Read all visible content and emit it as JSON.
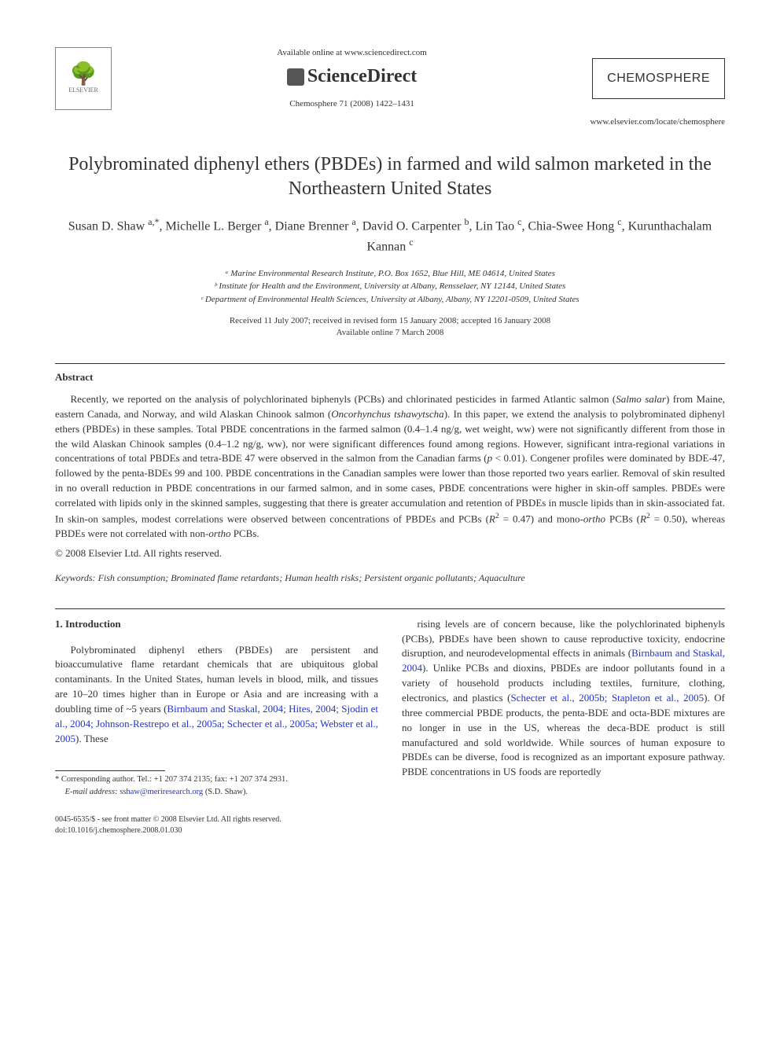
{
  "header": {
    "elsevier_label": "ELSEVIER",
    "available_online": "Available online at www.sciencedirect.com",
    "sciencedirect": "ScienceDirect",
    "citation": "Chemosphere 71 (2008) 1422–1431",
    "journal_name": "CHEMOSPHERE",
    "journal_url": "www.elsevier.com/locate/chemosphere"
  },
  "title": "Polybrominated diphenyl ethers (PBDEs) in farmed and wild salmon marketed in the Northeastern United States",
  "authors_html": "Susan D. Shaw <sup>a,*</sup>, Michelle L. Berger <sup>a</sup>, Diane Brenner <sup>a</sup>, David O. Carpenter <sup>b</sup>, Lin Tao <sup>c</sup>, Chia-Swee Hong <sup>c</sup>, Kurunthachalam Kannan <sup>c</sup>",
  "affiliations": [
    "ᵃ Marine Environmental Research Institute, P.O. Box 1652, Blue Hill, ME 04614, United States",
    "ᵇ Institute for Health and the Environment, University at Albany, Rensselaer, NY 12144, United States",
    "ᶜ Department of Environmental Health Sciences, University at Albany, Albany, NY 12201-0509, United States"
  ],
  "dates": {
    "received": "Received 11 July 2007; received in revised form 15 January 2008; accepted 16 January 2008",
    "available": "Available online 7 March 2008"
  },
  "abstract": {
    "heading": "Abstract",
    "body_html": "Recently, we reported on the analysis of polychlorinated biphenyls (PCBs) and chlorinated pesticides in farmed Atlantic salmon (<span class='ital'>Salmo salar</span>) from Maine, eastern Canada, and Norway, and wild Alaskan Chinook salmon (<span class='ital'>Oncorhynchus tshawytscha</span>). In this paper, we extend the analysis to polybrominated diphenyl ethers (PBDEs) in these samples. Total PBDE concentrations in the farmed salmon (0.4–1.4 ng/g, wet weight, ww) were not significantly different from those in the wild Alaskan Chinook samples (0.4–1.2 ng/g, ww), nor were significant differences found among regions. However, significant intra-regional variations in concentrations of total PBDEs and tetra-BDE 47 were observed in the salmon from the Canadian farms (<span class='ital'>p</span> &lt; 0.01). Congener profiles were dominated by BDE-47, followed by the penta-BDEs 99 and 100. PBDE concentrations in the Canadian samples were lower than those reported two years earlier. Removal of skin resulted in no overall reduction in PBDE concentrations in our farmed salmon, and in some cases, PBDE concentrations were higher in skin-off samples. PBDEs were correlated with lipids only in the skinned samples, suggesting that there is greater accumulation and retention of PBDEs in muscle lipids than in skin-associated fat. In skin-on samples, modest correlations were observed between concentrations of PBDEs and PCBs (<span class='ital'>R</span><sup>2</sup> = 0.47) and mono-<span class='ital'>ortho</span> PCBs (<span class='ital'>R</span><sup>2</sup> = 0.50), whereas PBDEs were not correlated with non-<span class='ital'>ortho</span> PCBs.",
    "copyright": "© 2008 Elsevier Ltd. All rights reserved."
  },
  "keywords": {
    "label": "Keywords:",
    "list": "Fish consumption; Brominated flame retardants; Human health risks; Persistent organic pollutants; Aquaculture"
  },
  "intro": {
    "heading": "1. Introduction",
    "col1_html": "Polybrominated diphenyl ethers (PBDEs) are persistent and bioaccumulative flame retardant chemicals that are ubiquitous global contaminants. In the United States, human levels in blood, milk, and tissues are 10–20 times higher than in Europe or Asia and are increasing with a doubling time of ~5 years (<span class='blue-link'>Birnbaum and Staskal, 2004; Hites, 2004; Sjodin et al., 2004; Johnson-Restrepo et al., 2005a; Schecter et al., 2005a; Webster et al., 2005</span>). These",
    "col2_html": "rising levels are of concern because, like the polychlorinated biphenyls (PCBs), PBDEs have been shown to cause reproductive toxicity, endocrine disruption, and neurodevelopmental effects in animals (<span class='blue-link'>Birnbaum and Staskal, 2004</span>). Unlike PCBs and dioxins, PBDEs are indoor pollutants found in a variety of household products including textiles, furniture, clothing, electronics, and plastics (<span class='blue-link'>Schecter et al., 2005b; Stapleton et al., 2005</span>). Of three commercial PBDE products, the penta-BDE and octa-BDE mixtures are no longer in use in the US, whereas the deca-BDE product is still manufactured and sold worldwide. While sources of human exposure to PBDEs can be diverse, food is recognized as an important exposure pathway. PBDE concentrations in US foods are reportedly"
  },
  "footer": {
    "corresponding": "* Corresponding author. Tel.: +1 207 374 2135; fax: +1 207 374 2931.",
    "email_label": "E-mail address:",
    "email": "sshaw@meriresearch.org",
    "email_suffix": "(S.D. Shaw).",
    "front_matter": "0045-6535/$ - see front matter © 2008 Elsevier Ltd. All rights reserved.",
    "doi": "doi:10.1016/j.chemosphere.2008.01.030"
  },
  "colors": {
    "link": "#2233cc",
    "text": "#333333",
    "background": "#ffffff"
  }
}
